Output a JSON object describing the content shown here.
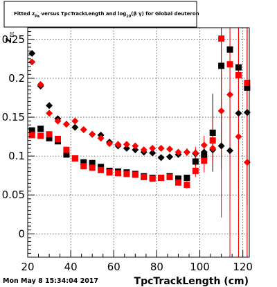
{
  "chart_data": {
    "type": "scatter",
    "title_parts": {
      "a": "Fitted  z",
      "a_sub": "Pa",
      "b": "  versus  TpcTrackLength and log",
      "b_sub": "10",
      "c": "(β γ) for Global deuteron"
    },
    "xlabel": "TpcTrackLength (cm)",
    "ylabel_main": "z",
    "ylabel_sub": "fit",
    "xlim": [
      20,
      123
    ],
    "ylim": [
      -0.03,
      0.265
    ],
    "xticks": [
      20,
      40,
      60,
      80,
      100,
      120
    ],
    "yticks": [
      0,
      0.05,
      0.1,
      0.15,
      0.2,
      0.25
    ],
    "ytick_labels": [
      "0",
      "0.05",
      "0.1",
      "0.15",
      "0.2",
      "0.25"
    ],
    "grid": true,
    "colors": {
      "black": "#000000",
      "red": "#ff0000"
    },
    "series": [
      {
        "marker": "diamond",
        "color": "#000000",
        "x": [
          22,
          26,
          30,
          34,
          38,
          42,
          46,
          50,
          54,
          58,
          62,
          66,
          70,
          74,
          78,
          82,
          86,
          90,
          94,
          98,
          102,
          106,
          110,
          114,
          118,
          122
        ],
        "y": [
          0.232,
          0.19,
          0.165,
          0.148,
          0.141,
          0.137,
          0.134,
          0.128,
          0.127,
          0.118,
          0.113,
          0.11,
          0.108,
          0.105,
          0.104,
          0.098,
          0.099,
          0.102,
          0.105,
          0.103,
          0.105,
          0.108,
          0.113,
          0.107,
          0.155,
          0.156
        ],
        "err": [
          0.003,
          0.002,
          0.002,
          0.002,
          0.002,
          0.002,
          0.002,
          0.002,
          0.002,
          0.002,
          0.002,
          0.002,
          0.002,
          0.002,
          0.002,
          0.002,
          0.002,
          0.003,
          0.004,
          0.006,
          0.01,
          0.015,
          0.03,
          0.06,
          0.11,
          0.12
        ]
      },
      {
        "marker": "square",
        "color": "#000000",
        "x": [
          22,
          26,
          30,
          34,
          38,
          42,
          46,
          50,
          54,
          58,
          62,
          66,
          70,
          74,
          78,
          82,
          86,
          90,
          94,
          98,
          102,
          106,
          110,
          114,
          118,
          122
        ],
        "y": [
          0.133,
          0.135,
          0.123,
          0.119,
          0.102,
          0.097,
          0.092,
          0.091,
          0.086,
          0.081,
          0.08,
          0.079,
          0.077,
          0.074,
          0.072,
          0.072,
          0.074,
          0.071,
          0.072,
          0.093,
          0.1,
          0.13,
          0.216,
          0.237,
          0.214,
          0.188
        ],
        "err": [
          0.003,
          0.002,
          0.002,
          0.002,
          0.002,
          0.002,
          0.002,
          0.002,
          0.002,
          0.002,
          0.002,
          0.002,
          0.002,
          0.002,
          0.002,
          0.002,
          0.002,
          0.003,
          0.004,
          0.006,
          0.01,
          0.05,
          0.1,
          0.15,
          0.15,
          0.15
        ]
      },
      {
        "marker": "diamond",
        "color": "#ff0000",
        "x": [
          22,
          26,
          30,
          34,
          38,
          42,
          46,
          50,
          54,
          58,
          62,
          66,
          70,
          74,
          78,
          82,
          86,
          90,
          94,
          98,
          102,
          106,
          110,
          114,
          118,
          122
        ],
        "y": [
          0.221,
          0.192,
          0.155,
          0.145,
          0.141,
          0.145,
          0.134,
          0.128,
          0.123,
          0.116,
          0.115,
          0.115,
          0.113,
          0.108,
          0.11,
          0.11,
          0.109,
          0.105,
          0.105,
          0.104,
          0.114,
          0.11,
          0.158,
          0.179,
          0.125,
          0.092
        ],
        "err": [
          0.003,
          0.002,
          0.002,
          0.002,
          0.002,
          0.002,
          0.002,
          0.002,
          0.002,
          0.002,
          0.002,
          0.002,
          0.002,
          0.002,
          0.002,
          0.002,
          0.002,
          0.003,
          0.005,
          0.008,
          0.012,
          0.02,
          0.06,
          0.15,
          0.2,
          0.15
        ]
      },
      {
        "marker": "square",
        "color": "#ff0000",
        "x": [
          22,
          26,
          30,
          34,
          38,
          42,
          46,
          50,
          54,
          58,
          62,
          66,
          70,
          74,
          78,
          82,
          86,
          90,
          94,
          98,
          102,
          106,
          110,
          114,
          118,
          122
        ],
        "y": [
          0.127,
          0.126,
          0.128,
          0.122,
          0.108,
          0.097,
          0.087,
          0.085,
          0.082,
          0.079,
          0.078,
          0.077,
          0.076,
          0.073,
          0.071,
          0.072,
          0.073,
          0.066,
          0.063,
          0.081,
          0.094,
          0.12,
          0.251,
          0.218,
          0.204,
          0.194
        ],
        "err": [
          0.003,
          0.002,
          0.002,
          0.002,
          0.002,
          0.002,
          0.002,
          0.002,
          0.002,
          0.002,
          0.002,
          0.002,
          0.002,
          0.002,
          0.002,
          0.002,
          0.002,
          0.003,
          0.005,
          0.008,
          0.015,
          0.03,
          0.23,
          0.3,
          0.3,
          0.3
        ]
      }
    ]
  },
  "datestamp": "Mon May  8 15:34:04 2017"
}
